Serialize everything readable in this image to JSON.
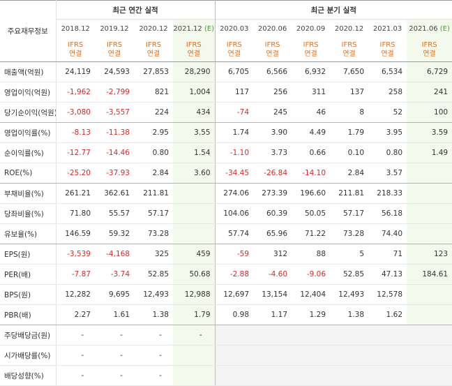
{
  "corner_label": "주요재무정보",
  "groups": {
    "annual": "최근 연간 실적",
    "quarterly": "최근 분기 실적"
  },
  "periods": [
    {
      "label": "2018.12",
      "est": ""
    },
    {
      "label": "2019.12",
      "est": ""
    },
    {
      "label": "2020.12",
      "est": ""
    },
    {
      "label": "2021.12",
      "est": "(E)"
    },
    {
      "label": "2020.03",
      "est": ""
    },
    {
      "label": "2020.06",
      "est": ""
    },
    {
      "label": "2020.09",
      "est": ""
    },
    {
      "label": "2020.12",
      "est": ""
    },
    {
      "label": "2021.03",
      "est": ""
    },
    {
      "label": "2021.06",
      "est": "(E)"
    }
  ],
  "standard": {
    "top": "IFRS",
    "bottom": "연결"
  },
  "rows": [
    {
      "label": "매출액(억원)",
      "values": [
        "24,119",
        "24,593",
        "27,853",
        "28,290",
        "6,705",
        "6,566",
        "6,932",
        "7,650",
        "6,534",
        "6,729"
      ]
    },
    {
      "label": "영업이익(억원)",
      "values": [
        "-1,962",
        "-2,799",
        "821",
        "1,004",
        "117",
        "256",
        "311",
        "137",
        "258",
        "241"
      ]
    },
    {
      "label": "당기순이익(억원)",
      "values": [
        "-3,080",
        "-3,557",
        "224",
        "434",
        "-74",
        "245",
        "46",
        "8",
        "52",
        "100"
      ]
    },
    {
      "label": "영업이익률(%)",
      "values": [
        "-8.13",
        "-11.38",
        "2.95",
        "3.55",
        "1.74",
        "3.90",
        "4.49",
        "1.79",
        "3.95",
        "3.59"
      ]
    },
    {
      "label": "순이익률(%)",
      "values": [
        "-12.77",
        "-14.46",
        "0.80",
        "1.54",
        "-1.10",
        "3.73",
        "0.66",
        "0.10",
        "0.80",
        "1.49"
      ]
    },
    {
      "label": "ROE(%)",
      "values": [
        "-25.20",
        "-37.93",
        "2.84",
        "3.60",
        "-34.45",
        "-26.84",
        "-14.10",
        "2.84",
        "3.57",
        ""
      ]
    },
    {
      "label": "부채비율(%)",
      "values": [
        "261.21",
        "362.61",
        "211.81",
        "",
        "274.06",
        "273.39",
        "196.60",
        "211.81",
        "218.33",
        ""
      ]
    },
    {
      "label": "당좌비율(%)",
      "values": [
        "71.80",
        "55.57",
        "57.17",
        "",
        "104.06",
        "60.39",
        "50.05",
        "57.17",
        "56.18",
        ""
      ]
    },
    {
      "label": "유보율(%)",
      "values": [
        "146.59",
        "59.32",
        "73.28",
        "",
        "57.74",
        "65.96",
        "71.22",
        "73.28",
        "74.40",
        ""
      ]
    },
    {
      "label": "EPS(원)",
      "values": [
        "-3,539",
        "-4,168",
        "325",
        "459",
        "-59",
        "312",
        "88",
        "5",
        "71",
        "123"
      ]
    },
    {
      "label": "PER(배)",
      "values": [
        "-7.87",
        "-3.74",
        "52.85",
        "50.68",
        "-2.88",
        "-4.60",
        "-9.06",
        "52.85",
        "47.13",
        "184.61"
      ]
    },
    {
      "label": "BPS(원)",
      "values": [
        "12,282",
        "9,695",
        "12,493",
        "12,988",
        "12,697",
        "13,154",
        "12,404",
        "12,493",
        "12,578",
        ""
      ]
    },
    {
      "label": "PBR(배)",
      "values": [
        "2.27",
        "1.61",
        "1.38",
        "1.79",
        "0.98",
        "1.17",
        "1.29",
        "1.38",
        "1.62",
        ""
      ]
    },
    {
      "label": "주당배당금(원)",
      "values": [
        "-",
        "-",
        "-",
        "-",
        "",
        "",
        "",
        "",
        "",
        ""
      ]
    },
    {
      "label": "시가배당률(%)",
      "values": [
        "-",
        "-",
        "-",
        "",
        "",
        "",
        "",
        "",
        "",
        ""
      ]
    },
    {
      "label": "배당성향(%)",
      "values": [
        "-",
        "-",
        "-",
        "",
        "",
        "",
        "",
        "",
        "",
        ""
      ]
    }
  ],
  "group_end_rows": [
    2,
    5,
    8,
    12
  ],
  "colors": {
    "negative": "#d42a2a",
    "estimate_bg": "#f3f9ec",
    "ifrs_orange": "#e0701c",
    "estimate_mark": "#4a9d2f"
  }
}
